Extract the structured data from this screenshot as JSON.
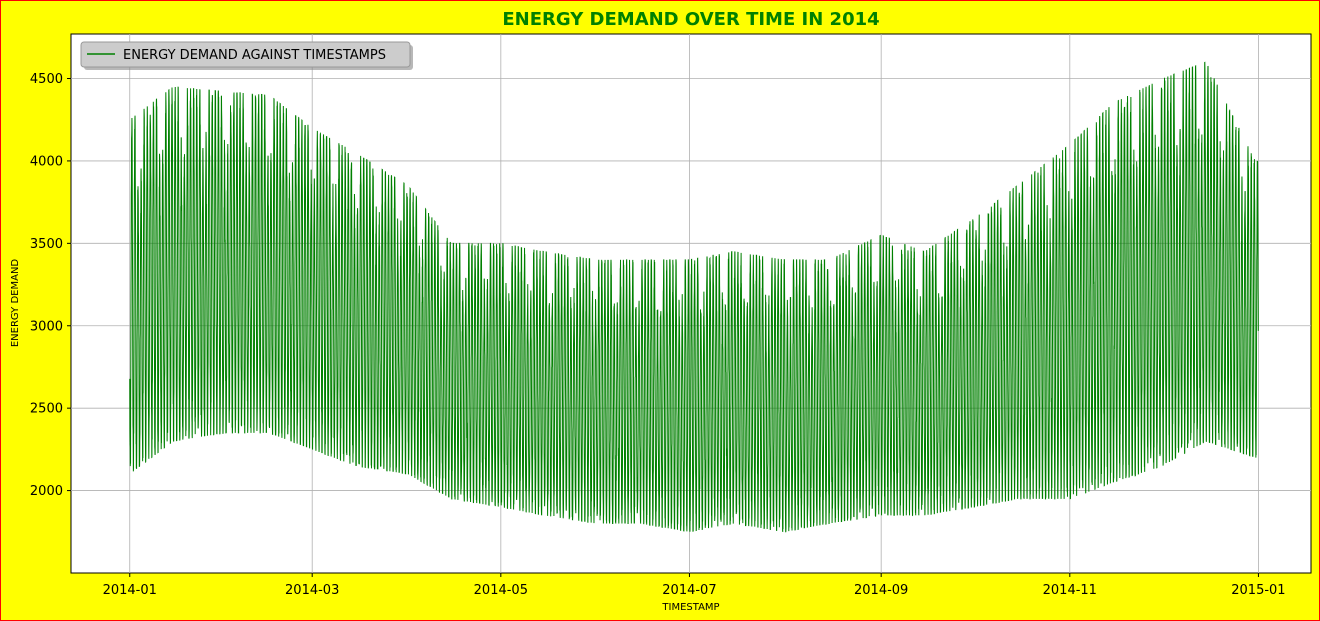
{
  "colors": {
    "figure_background": "#ffff00",
    "figure_border": "#ff0000",
    "title": "#008000",
    "line": "#008000",
    "grid": "#b0b0b0"
  },
  "chart_data": {
    "type": "line",
    "title": "ENERGY DEMAND OVER TIME IN 2014",
    "xlabel": "TIMESTAMP",
    "ylabel": "ENERGY DEMAND",
    "x_ticks": [
      "2014-01",
      "2014-03",
      "2014-05",
      "2014-07",
      "2014-09",
      "2014-11",
      "2015-01"
    ],
    "y_ticks": [
      2000,
      2500,
      3000,
      3500,
      4000,
      4500
    ],
    "xlim": [
      "2013-12-13",
      "2015-01-18"
    ],
    "ylim": [
      1500,
      4770
    ],
    "grid": true,
    "legend": {
      "placement": "top-left",
      "entries": [
        "ENERGY DEMAND AGAINST TIMESTAMPS"
      ]
    },
    "series": [
      {
        "name": "ENERGY DEMAND AGAINST TIMESTAMPS",
        "color": "#008000",
        "resolution": "hourly, 2014-01-01 to 2014-12-31 (approximate envelope readings by date)",
        "dates": [
          "2014-01-01",
          "2014-01-15",
          "2014-02-01",
          "2014-02-15",
          "2014-03-01",
          "2014-03-15",
          "2014-04-01",
          "2014-04-15",
          "2014-05-01",
          "2014-05-15",
          "2014-06-01",
          "2014-06-15",
          "2014-07-01",
          "2014-07-15",
          "2014-08-01",
          "2014-08-15",
          "2014-09-01",
          "2014-09-15",
          "2014-10-01",
          "2014-10-15",
          "2014-11-01",
          "2014-11-15",
          "2014-12-01",
          "2014-12-15",
          "2014-12-31"
        ],
        "daily_min": [
          2100,
          2300,
          2350,
          2350,
          2250,
          2150,
          2100,
          1950,
          1900,
          1850,
          1800,
          1800,
          1750,
          1800,
          1750,
          1800,
          1850,
          1850,
          1900,
          1950,
          1950,
          2050,
          2150,
          2300,
          2200
        ],
        "daily_max": [
          4250,
          4450,
          4420,
          4400,
          4200,
          4050,
          3850,
          3500,
          3500,
          3450,
          3400,
          3400,
          3400,
          3450,
          3400,
          3400,
          3550,
          3450,
          3650,
          3850,
          4100,
          4350,
          4500,
          4600,
          4000
        ]
      }
    ]
  }
}
